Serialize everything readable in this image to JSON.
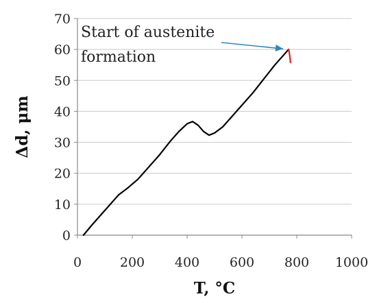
{
  "chart_data": {
    "type": "line",
    "xlabel": "T, °C",
    "ylabel": "Δd, μm",
    "xlim": [
      0,
      1000
    ],
    "ylim": [
      0,
      70
    ],
    "xticks": [
      "0",
      "200",
      "400",
      "600",
      "800",
      "1000"
    ],
    "yticks": [
      "0",
      "10",
      "20",
      "30",
      "40",
      "50",
      "60",
      "70"
    ],
    "grid": "horizontal",
    "colors": {
      "main_line": "#000000",
      "cooling_line": "#e0201a",
      "arrow": "#2e86c1",
      "grid": "#c8c8c8"
    },
    "series": [
      {
        "values_x": [
          22,
          50,
          100,
          150,
          180,
          220,
          260,
          300,
          340,
          370,
          400,
          420,
          440,
          460,
          480,
          500,
          530,
          560,
          600,
          640,
          680,
          720,
          750,
          770
        ],
        "values_y": [
          0,
          3,
          8,
          13,
          15,
          18,
          22,
          26,
          30.5,
          33.5,
          36,
          36.7,
          35.5,
          33.5,
          32.3,
          33,
          35,
          38,
          42,
          46,
          50.5,
          55,
          58,
          60
        ]
      },
      {
        "values_x": [
          770,
          772,
          775,
          777
        ],
        "values_y": [
          60,
          59.3,
          57.5,
          55.8
        ]
      }
    ],
    "annotation": {
      "lines": [
        "Start of austenite",
        "formation"
      ],
      "target_x": 770,
      "target_y": 60
    }
  }
}
